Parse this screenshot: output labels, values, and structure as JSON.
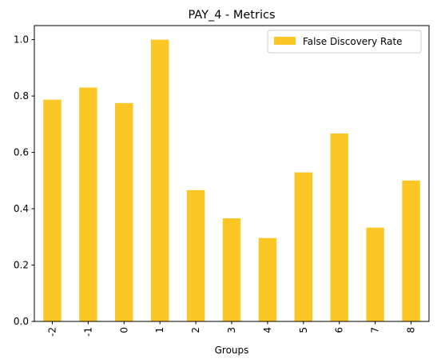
{
  "chart_data": {
    "type": "bar",
    "title": "PAY_4 - Metrics",
    "xlabel": "Groups",
    "ylabel": "",
    "categories": [
      "-2",
      "-1",
      "0",
      "1",
      "2",
      "3",
      "4",
      "5",
      "6",
      "7",
      "8"
    ],
    "series": [
      {
        "name": "False Discovery Rate",
        "values": [
          0.787,
          0.83,
          0.775,
          1.0,
          0.466,
          0.366,
          0.296,
          0.529,
          0.667,
          0.333,
          0.5
        ],
        "color": "#fcc624"
      }
    ],
    "ylim": [
      0,
      1.05
    ],
    "yticks": [
      "0.0",
      "0.2",
      "0.4",
      "0.6",
      "0.8",
      "1.0"
    ],
    "grid": false,
    "legend_position": "top-right"
  }
}
